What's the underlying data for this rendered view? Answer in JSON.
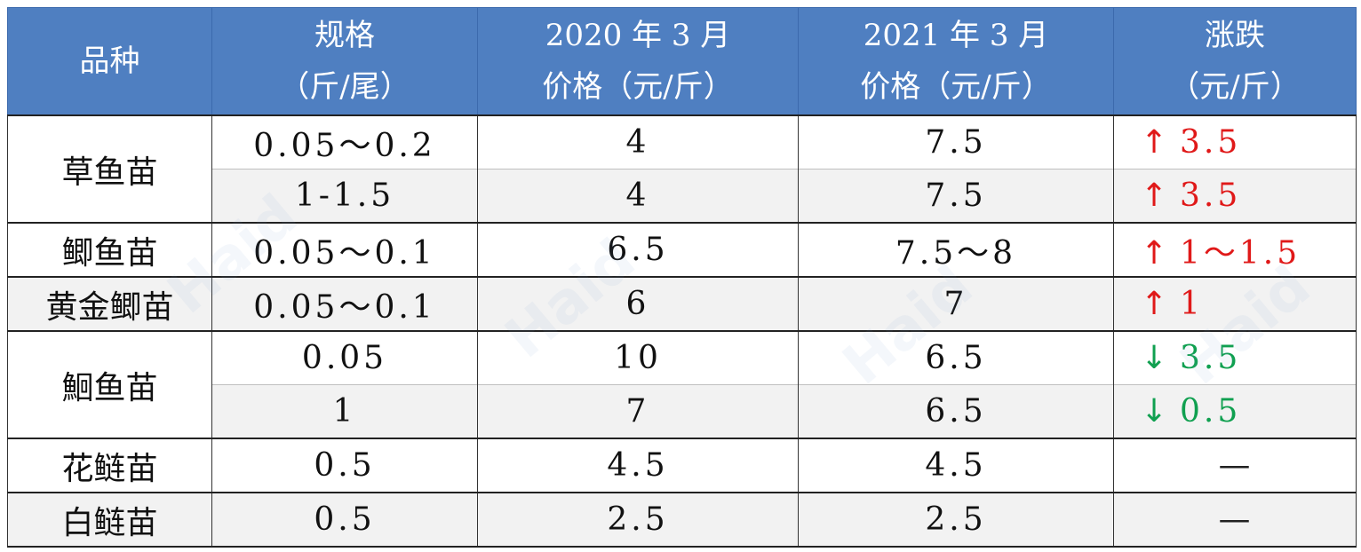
{
  "table": {
    "headers": [
      [
        "品种"
      ],
      [
        "规格",
        "（斤/尾）"
      ],
      [
        "2020 年 3 月",
        "价格（元/斤）"
      ],
      [
        "2021 年 3 月",
        "价格（元/斤）"
      ],
      [
        "涨跌",
        "（元/斤）"
      ]
    ],
    "groups": [
      {
        "name": "草鱼苗",
        "rows": [
          {
            "spec": "0.05～0.2",
            "p2020": "4",
            "p2021": "7.5",
            "dir": "up",
            "arrow": "↑",
            "change": "3.5"
          },
          {
            "spec": "1-1.5",
            "p2020": "4",
            "p2021": "7.5",
            "dir": "up",
            "arrow": "↑",
            "change": "3.5"
          }
        ]
      },
      {
        "name": "鲫鱼苗",
        "rows": [
          {
            "spec": "0.05～0.1",
            "p2020": "6.5",
            "p2021": "7.5～8",
            "dir": "up",
            "arrow": "↑",
            "change": "1～1.5"
          }
        ]
      },
      {
        "name": "黄金鲫苗",
        "rows": [
          {
            "spec": "0.05～0.1",
            "p2020": "6",
            "p2021": "7",
            "dir": "up",
            "arrow": "↑",
            "change": "1"
          }
        ]
      },
      {
        "name": "鮰鱼苗",
        "rows": [
          {
            "spec": "0.05",
            "p2020": "10",
            "p2021": "6.5",
            "dir": "down",
            "arrow": "↓",
            "change": "3.5"
          },
          {
            "spec": "1",
            "p2020": "7",
            "p2021": "6.5",
            "dir": "down",
            "arrow": "↓",
            "change": "0.5"
          }
        ]
      },
      {
        "name": "花鲢苗",
        "rows": [
          {
            "spec": "0.5",
            "p2020": "4.5",
            "p2021": "4.5",
            "dir": "flat",
            "arrow": "",
            "change": "—"
          }
        ]
      },
      {
        "name": "白鲢苗",
        "rows": [
          {
            "spec": "0.5",
            "p2020": "2.5",
            "p2021": "2.5",
            "dir": "flat",
            "arrow": "",
            "change": "—"
          }
        ]
      }
    ]
  },
  "watermark": "Haid",
  "colors": {
    "header_bg": "#4f7fc1",
    "up": "#e01919",
    "down": "#10a050",
    "shade": "#f2f2f2"
  }
}
